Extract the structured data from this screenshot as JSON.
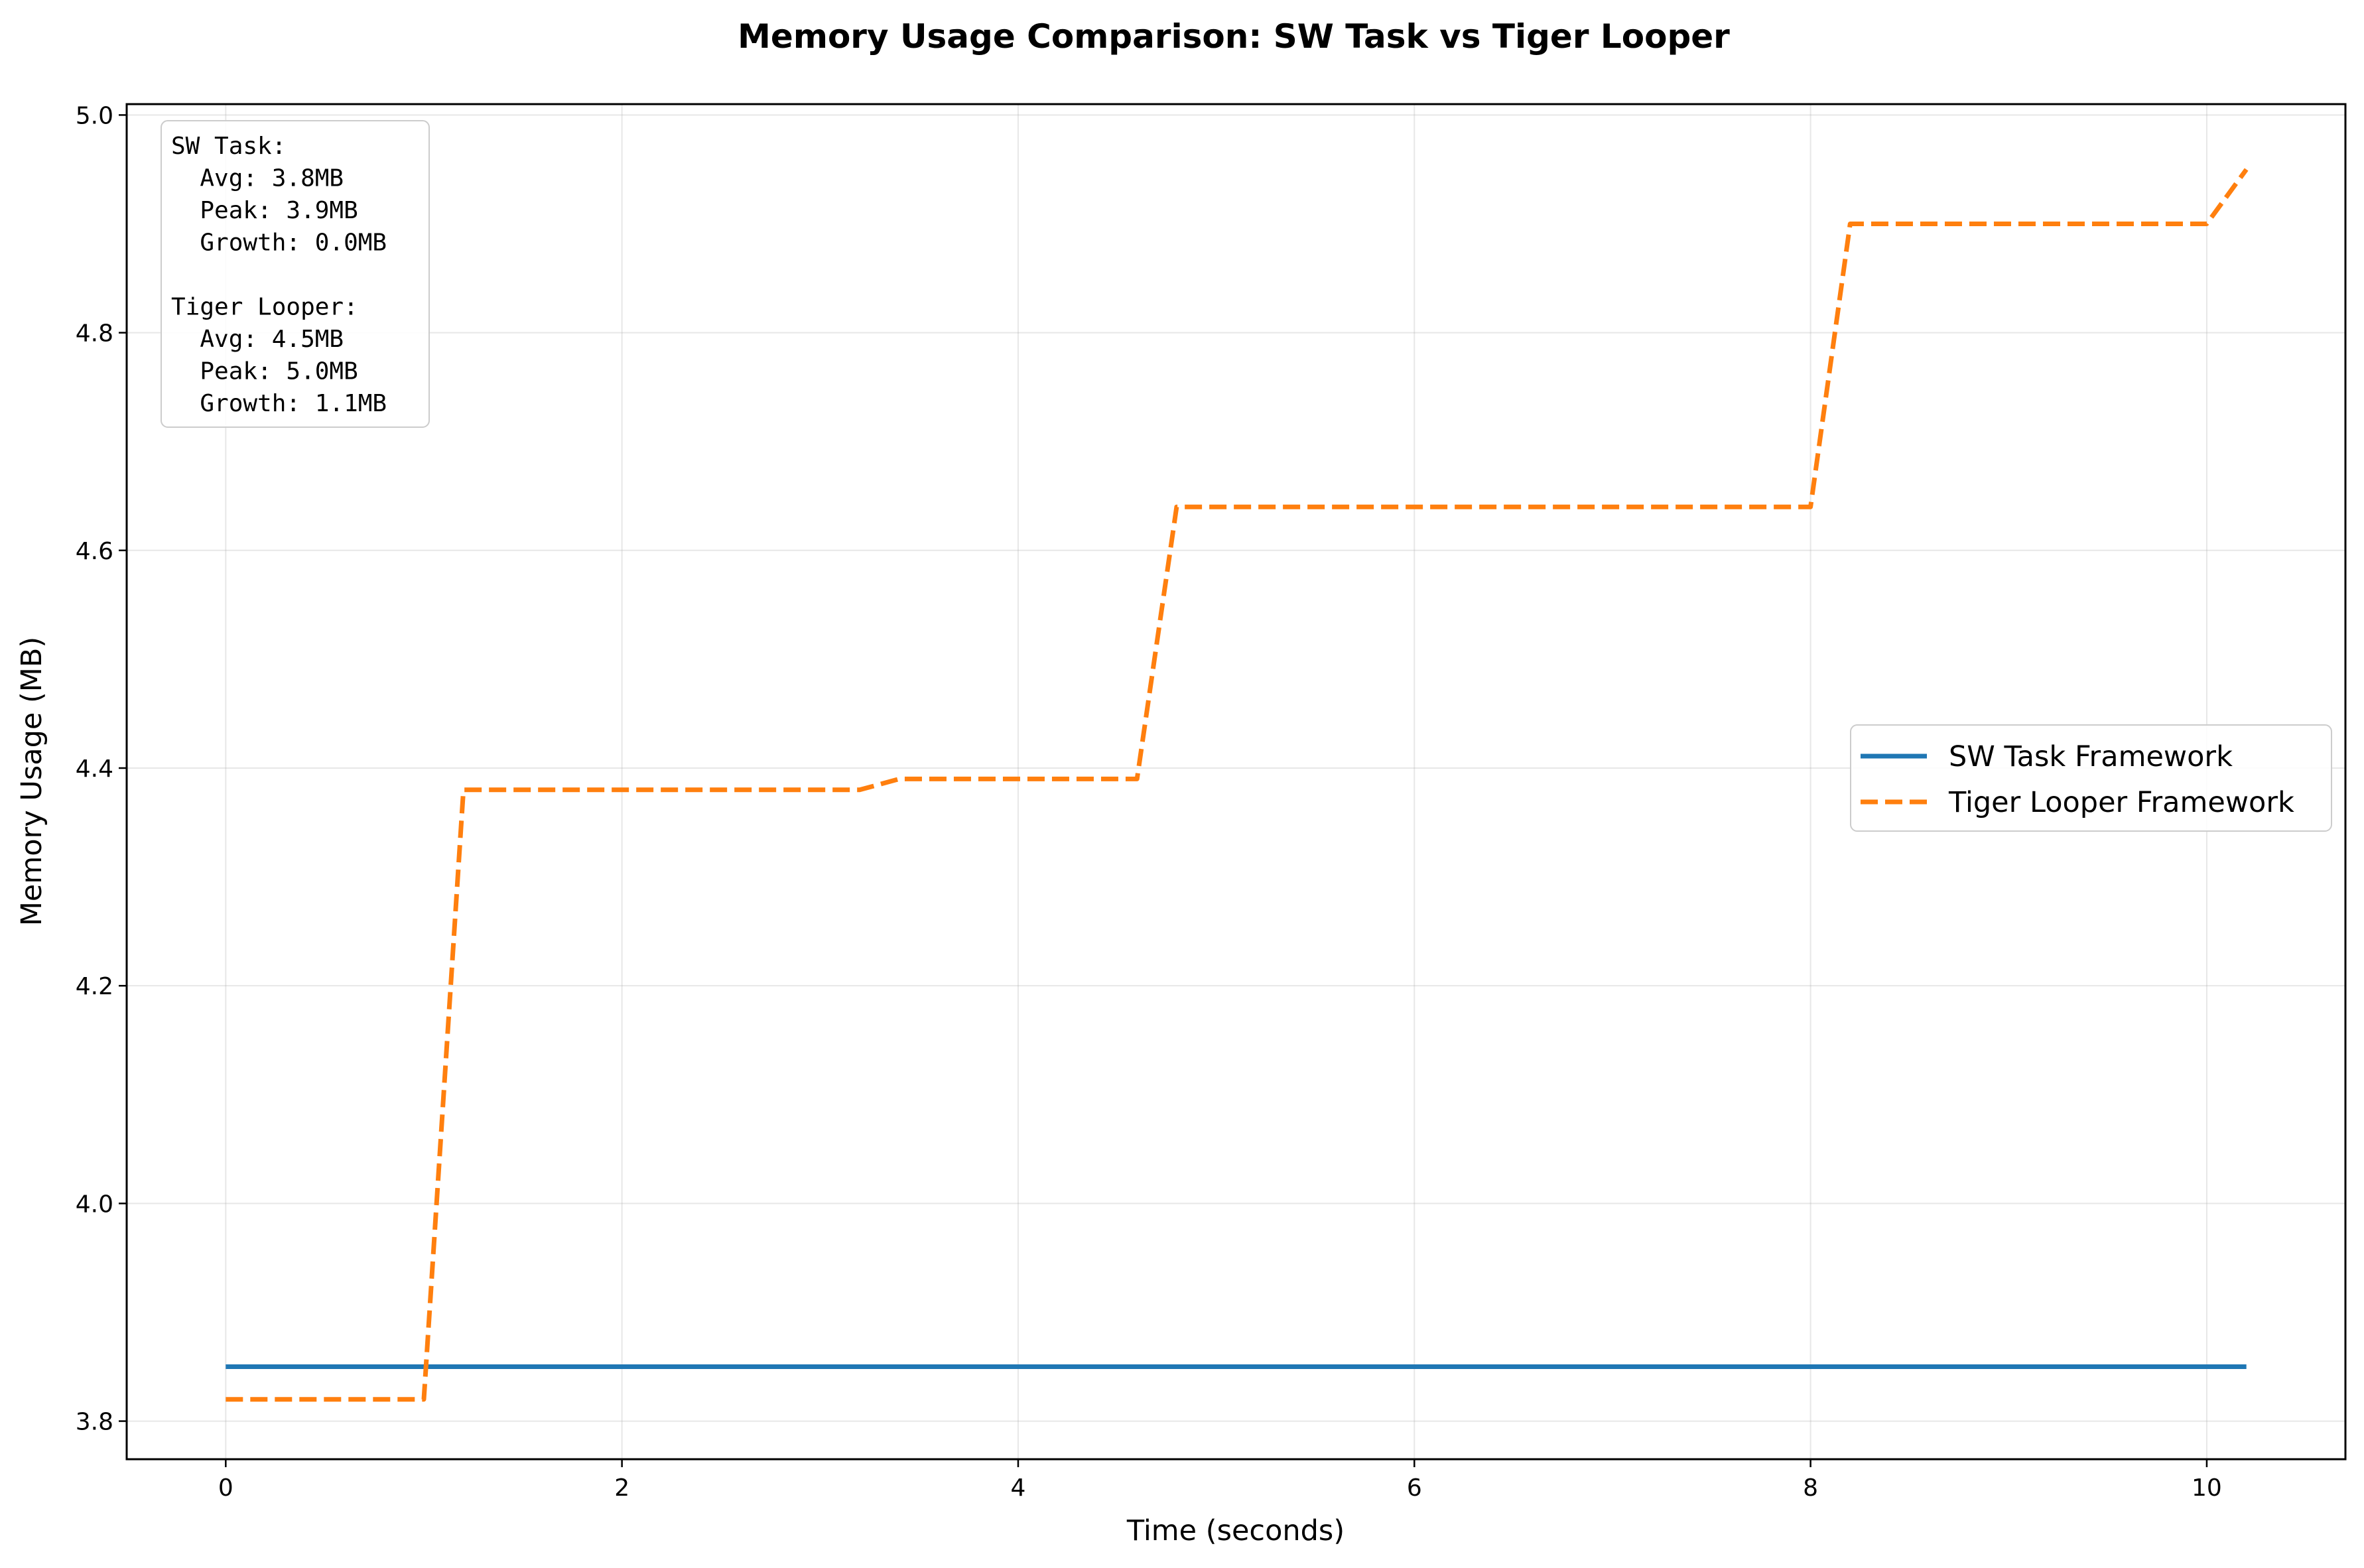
{
  "chart_data": {
    "type": "line",
    "title": "Memory Usage Comparison: SW Task vs Tiger Looper",
    "xlabel": "Time (seconds)",
    "ylabel": "Memory Usage (MB)",
    "xlim": [
      -0.5,
      10.7
    ],
    "ylim": [
      3.765,
      5.01
    ],
    "xticks": [
      0,
      2,
      4,
      6,
      8,
      10
    ],
    "xtick_labels": [
      "0",
      "2",
      "4",
      "6",
      "8",
      "10"
    ],
    "yticks": [
      3.8,
      4.0,
      4.2,
      4.4,
      4.6,
      4.8,
      5.0
    ],
    "ytick_labels": [
      "3.8",
      "4.0",
      "4.2",
      "4.4",
      "4.6",
      "4.8",
      "5.0"
    ],
    "grid": true,
    "legend_position": "center-right",
    "series": [
      {
        "name": "SW Task Framework",
        "color": "#1f77b4",
        "style": "solid",
        "points": [
          [
            0,
            3.85
          ],
          [
            10.2,
            3.85
          ]
        ]
      },
      {
        "name": "Tiger Looper Framework",
        "color": "#ff7f0e",
        "style": "dashed",
        "points": [
          [
            0,
            3.82
          ],
          [
            1.0,
            3.82
          ],
          [
            1.2,
            4.38
          ],
          [
            3.2,
            4.38
          ],
          [
            3.4,
            4.39
          ],
          [
            4.6,
            4.39
          ],
          [
            4.8,
            4.64
          ],
          [
            8.0,
            4.64
          ],
          [
            8.2,
            4.9
          ],
          [
            10.0,
            4.9
          ],
          [
            10.2,
            4.95
          ]
        ]
      }
    ],
    "stats_box_lines": [
      "SW Task:",
      "  Avg: 3.8MB",
      "  Peak: 3.9MB",
      "  Growth: 0.0MB",
      "",
      "Tiger Looper:",
      "  Avg: 4.5MB",
      "  Peak: 5.0MB",
      "  Growth: 1.1MB"
    ]
  }
}
